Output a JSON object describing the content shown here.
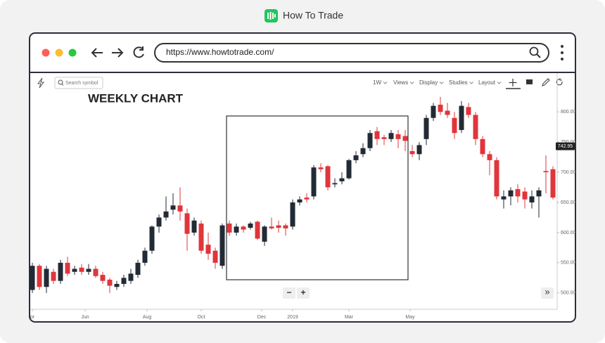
{
  "header": {
    "brand": "How To Trade"
  },
  "browser": {
    "url": "https://www.howtotrade.com/"
  },
  "toolbar": {
    "search_placeholder": "Search symbol",
    "items": [
      "1W",
      "Views",
      "Display",
      "Studies",
      "Layout"
    ]
  },
  "zoom": {
    "out": "−",
    "in": "+",
    "scroll": "»"
  },
  "chart_data": {
    "type": "candlestick",
    "title": "WEEKLY CHART",
    "up_color": "#222a35",
    "down_color": "#e0353b",
    "open": [
      505,
      545,
      510,
      535,
      520,
      550,
      535,
      542,
      535,
      540,
      530,
      522,
      510,
      515,
      520,
      530,
      550,
      570,
      610,
      625,
      638,
      645,
      632,
      600,
      615,
      580,
      570,
      545,
      615,
      600,
      610,
      608,
      618,
      585,
      610,
      612,
      612,
      610,
      650,
      658,
      660,
      708,
      710,
      680,
      685,
      690,
      720,
      730,
      740,
      768,
      758,
      755,
      763,
      760,
      735,
      730,
      755,
      790,
      812,
      802,
      790,
      770,
      808,
      795,
      755,
      730,
      720,
      655,
      660,
      672,
      668,
      650,
      660,
      702,
      705
    ],
    "high": [
      550,
      548,
      545,
      540,
      555,
      560,
      545,
      548,
      548,
      545,
      535,
      525,
      520,
      530,
      540,
      555,
      575,
      612,
      630,
      660,
      665,
      675,
      640,
      625,
      620,
      600,
      575,
      615,
      620,
      615,
      612,
      618,
      620,
      612,
      625,
      620,
      615,
      655,
      660,
      665,
      712,
      715,
      712,
      690,
      700,
      722,
      735,
      748,
      770,
      775,
      762,
      770,
      770,
      770,
      745,
      750,
      795,
      815,
      825,
      815,
      800,
      818,
      815,
      800,
      760,
      735,
      725,
      670,
      675,
      680,
      675,
      670,
      675,
      728,
      710
    ],
    "low": [
      500,
      505,
      500,
      515,
      515,
      528,
      530,
      530,
      530,
      525,
      515,
      500,
      505,
      510,
      515,
      525,
      545,
      565,
      600,
      620,
      630,
      620,
      570,
      595,
      565,
      555,
      540,
      540,
      595,
      595,
      600,
      605,
      588,
      578,
      605,
      600,
      595,
      605,
      645,
      650,
      655,
      700,
      670,
      675,
      680,
      688,
      715,
      725,
      735,
      745,
      745,
      750,
      740,
      735,
      725,
      720,
      745,
      785,
      795,
      790,
      755,
      765,
      790,
      745,
      725,
      695,
      655,
      640,
      645,
      650,
      640,
      640,
      625,
      665,
      655
    ],
    "close": [
      545,
      510,
      540,
      520,
      550,
      532,
      540,
      535,
      540,
      528,
      520,
      512,
      515,
      525,
      532,
      550,
      570,
      610,
      625,
      635,
      645,
      635,
      598,
      620,
      570,
      565,
      550,
      612,
      600,
      610,
      605,
      615,
      590,
      610,
      607,
      608,
      607,
      650,
      655,
      655,
      708,
      705,
      675,
      682,
      690,
      720,
      728,
      740,
      765,
      755,
      755,
      765,
      755,
      752,
      730,
      745,
      790,
      810,
      800,
      795,
      765,
      810,
      795,
      755,
      730,
      720,
      660,
      660,
      670,
      660,
      655,
      660,
      670,
      700,
      658
    ],
    "xlim": [
      -0.4,
      74.4
    ],
    "xticks": [
      {
        "value": 0,
        "label": "pr"
      },
      {
        "value": 7.5,
        "label": "Jun"
      },
      {
        "value": 16.3,
        "label": "Aug"
      },
      {
        "value": 24,
        "label": "Oct"
      },
      {
        "value": 32.6,
        "label": "Dec"
      },
      {
        "value": 37,
        "label": "2019"
      },
      {
        "value": 45,
        "label": "Mar"
      },
      {
        "value": 53.7,
        "label": "May"
      }
    ],
    "ylim": [
      473,
      834
    ],
    "yticks": [
      {
        "value": 500,
        "label": "500.00"
      },
      {
        "value": 550,
        "label": "550.00"
      },
      {
        "value": 600,
        "label": "600.00"
      },
      {
        "value": 650,
        "label": "650.00"
      },
      {
        "value": 700,
        "label": "700.00"
      },
      {
        "value": 750,
        "label": "750.00"
      },
      {
        "value": 800,
        "label": "800.00"
      }
    ],
    "last_price": 742.95
  }
}
